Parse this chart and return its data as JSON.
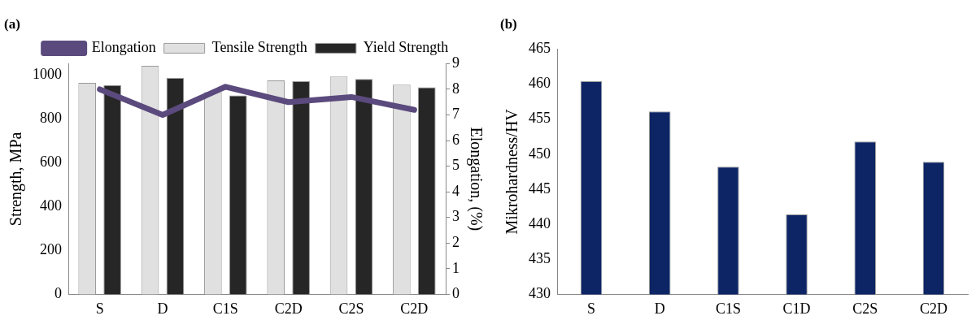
{
  "chart_data": [
    {
      "type": "bar",
      "title": "(a)",
      "ylabel": "Strength, MPa",
      "y2label": "Elongation, (%)",
      "categories": [
        "S",
        "D",
        "C1S",
        "C2D",
        "C2S",
        "C2D"
      ],
      "series": [
        {
          "name": "Tensile Strength",
          "color": "#e0e0e0",
          "values": [
            963,
            1040,
            920,
            974,
            991,
            954
          ]
        },
        {
          "name": "Yield Strength",
          "color": "#262626",
          "values": [
            953,
            985,
            905,
            970,
            980,
            942
          ]
        },
        {
          "name": "Elongation",
          "type": "line",
          "axis": "y2",
          "color": "#5b4a7d",
          "values": [
            8.0,
            7.0,
            8.1,
            7.5,
            7.7,
            7.2
          ]
        }
      ],
      "ylim": [
        0,
        1050
      ],
      "yticks": [
        0,
        200,
        400,
        600,
        800,
        1000
      ],
      "y2lim": [
        0,
        9
      ],
      "y2ticks": [
        0,
        1,
        2,
        3,
        4,
        5,
        6,
        7,
        8,
        9
      ],
      "grid": false,
      "legend": "top",
      "marker": "none"
    },
    {
      "type": "bar",
      "title": "(b)",
      "ylabel": "Mikrohardness/HV",
      "categories": [
        "S",
        "D",
        "C1S",
        "C1D",
        "C2S",
        "C2D"
      ],
      "series": [
        {
          "color": "#0d2565",
          "values": [
            460.4,
            456.1,
            448.2,
            441.4,
            451.8,
            448.9
          ]
        }
      ],
      "ylim": [
        430,
        465
      ],
      "yticks": [
        430,
        435,
        440,
        445,
        450,
        455,
        460,
        465
      ],
      "grid": false,
      "legend": false
    }
  ]
}
